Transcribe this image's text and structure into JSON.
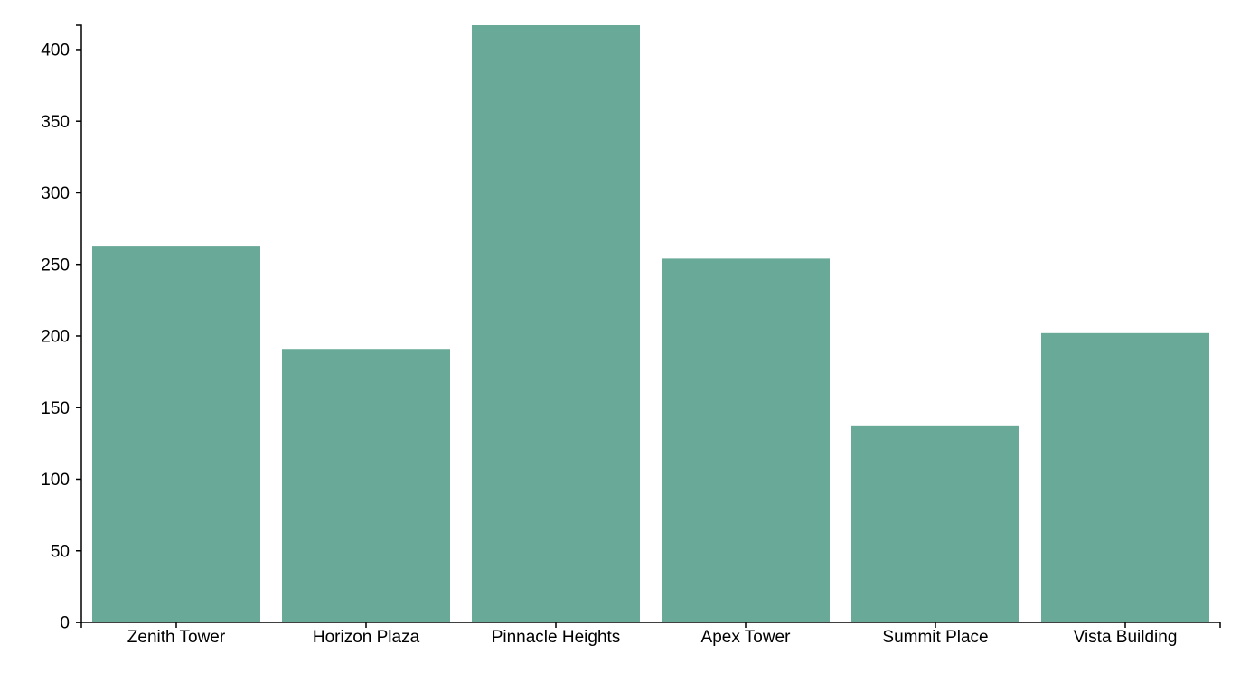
{
  "chart_data": {
    "type": "bar",
    "categories": [
      "Zenith Tower",
      "Horizon Plaza",
      "Pinnacle Heights",
      "Apex Tower",
      "Summit Place",
      "Vista Building"
    ],
    "values": [
      263,
      191,
      417,
      254,
      137,
      202
    ],
    "title": "",
    "xlabel": "",
    "ylabel": "",
    "ylim": [
      0,
      417
    ],
    "yticks": [
      0,
      50,
      100,
      150,
      200,
      250,
      300,
      350,
      400
    ],
    "grid": false,
    "bar_color": "#69a997"
  }
}
